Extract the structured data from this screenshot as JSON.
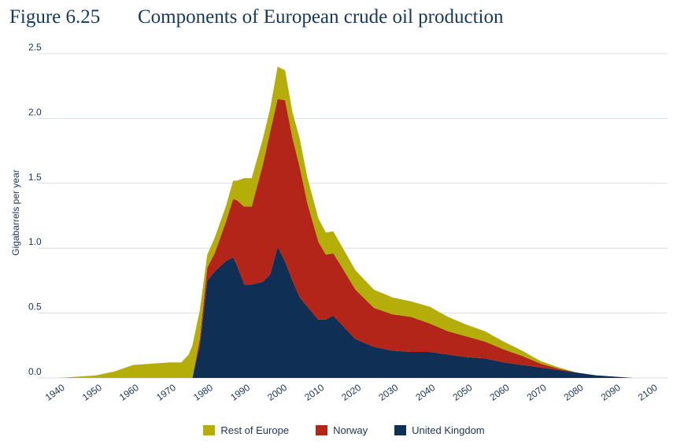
{
  "figure": {
    "number": "Figure 6.25",
    "title": "Components of European crude oil production"
  },
  "chart_data": {
    "type": "area",
    "stacked": true,
    "title": "Components of European crude oil production",
    "xlabel": "",
    "ylabel": "Gigabarrels per year",
    "xlim": [
      1940,
      2100
    ],
    "ylim": [
      0,
      2.5
    ],
    "x_ticks": [
      "1940",
      "1950",
      "1960",
      "1970",
      "1980",
      "1990",
      "2000",
      "2010",
      "2020",
      "2030",
      "2040",
      "2050",
      "2060",
      "2070",
      "2080",
      "2090",
      "2100"
    ],
    "y_ticks": [
      "0.0",
      "0.5",
      "1.0",
      "1.5",
      "2.0",
      "2.5"
    ],
    "grid": "horizontal",
    "legend_position": "bottom",
    "x": [
      1940,
      1945,
      1950,
      1955,
      1960,
      1965,
      1970,
      1973,
      1975,
      1976,
      1978,
      1980,
      1982,
      1985,
      1987,
      1988,
      1990,
      1992,
      1995,
      1997,
      1999,
      2001,
      2003,
      2005,
      2007,
      2010,
      2012,
      2014,
      2016,
      2020,
      2025,
      2030,
      2035,
      2040,
      2045,
      2050,
      2055,
      2060,
      2065,
      2070,
      2075,
      2080,
      2085,
      2090,
      2095
    ],
    "series": [
      {
        "name": "United Kingdom",
        "color": "#0f2f55",
        "values": [
          0,
          0,
          0,
          0,
          0,
          0,
          0,
          0,
          0,
          0,
          0.25,
          0.75,
          0.82,
          0.9,
          0.93,
          0.87,
          0.72,
          0.72,
          0.74,
          0.8,
          1.01,
          0.9,
          0.75,
          0.62,
          0.55,
          0.45,
          0.45,
          0.48,
          0.42,
          0.3,
          0.24,
          0.21,
          0.2,
          0.2,
          0.18,
          0.16,
          0.15,
          0.12,
          0.1,
          0.08,
          0.06,
          0.04,
          0.02,
          0.01,
          0
        ]
      },
      {
        "name": "Norway",
        "color": "#b32519",
        "values": [
          0,
          0,
          0,
          0,
          0,
          0,
          0,
          0,
          0,
          0,
          0.05,
          0.1,
          0.14,
          0.3,
          0.45,
          0.5,
          0.6,
          0.6,
          0.9,
          1.1,
          1.14,
          1.24,
          1.1,
          1.0,
          0.8,
          0.6,
          0.5,
          0.48,
          0.45,
          0.38,
          0.3,
          0.28,
          0.27,
          0.22,
          0.18,
          0.16,
          0.13,
          0.1,
          0.07,
          0.03,
          0.01,
          0,
          0,
          0,
          0
        ]
      },
      {
        "name": "Rest of Europe",
        "color": "#b5ad0a",
        "values": [
          0,
          0.01,
          0.02,
          0.05,
          0.1,
          0.11,
          0.12,
          0.12,
          0.18,
          0.25,
          0.22,
          0.1,
          0.12,
          0.12,
          0.14,
          0.15,
          0.22,
          0.22,
          0.2,
          0.18,
          0.25,
          0.23,
          0.2,
          0.22,
          0.2,
          0.18,
          0.17,
          0.17,
          0.16,
          0.15,
          0.14,
          0.13,
          0.12,
          0.13,
          0.11,
          0.09,
          0.08,
          0.06,
          0.04,
          0.02,
          0.01,
          0,
          0,
          0,
          0
        ]
      }
    ]
  },
  "legend": [
    {
      "label": "Rest of Europe",
      "color": "#b5ad0a"
    },
    {
      "label": "Norway",
      "color": "#b32519"
    },
    {
      "label": "United Kingdom",
      "color": "#0f2f55"
    }
  ]
}
